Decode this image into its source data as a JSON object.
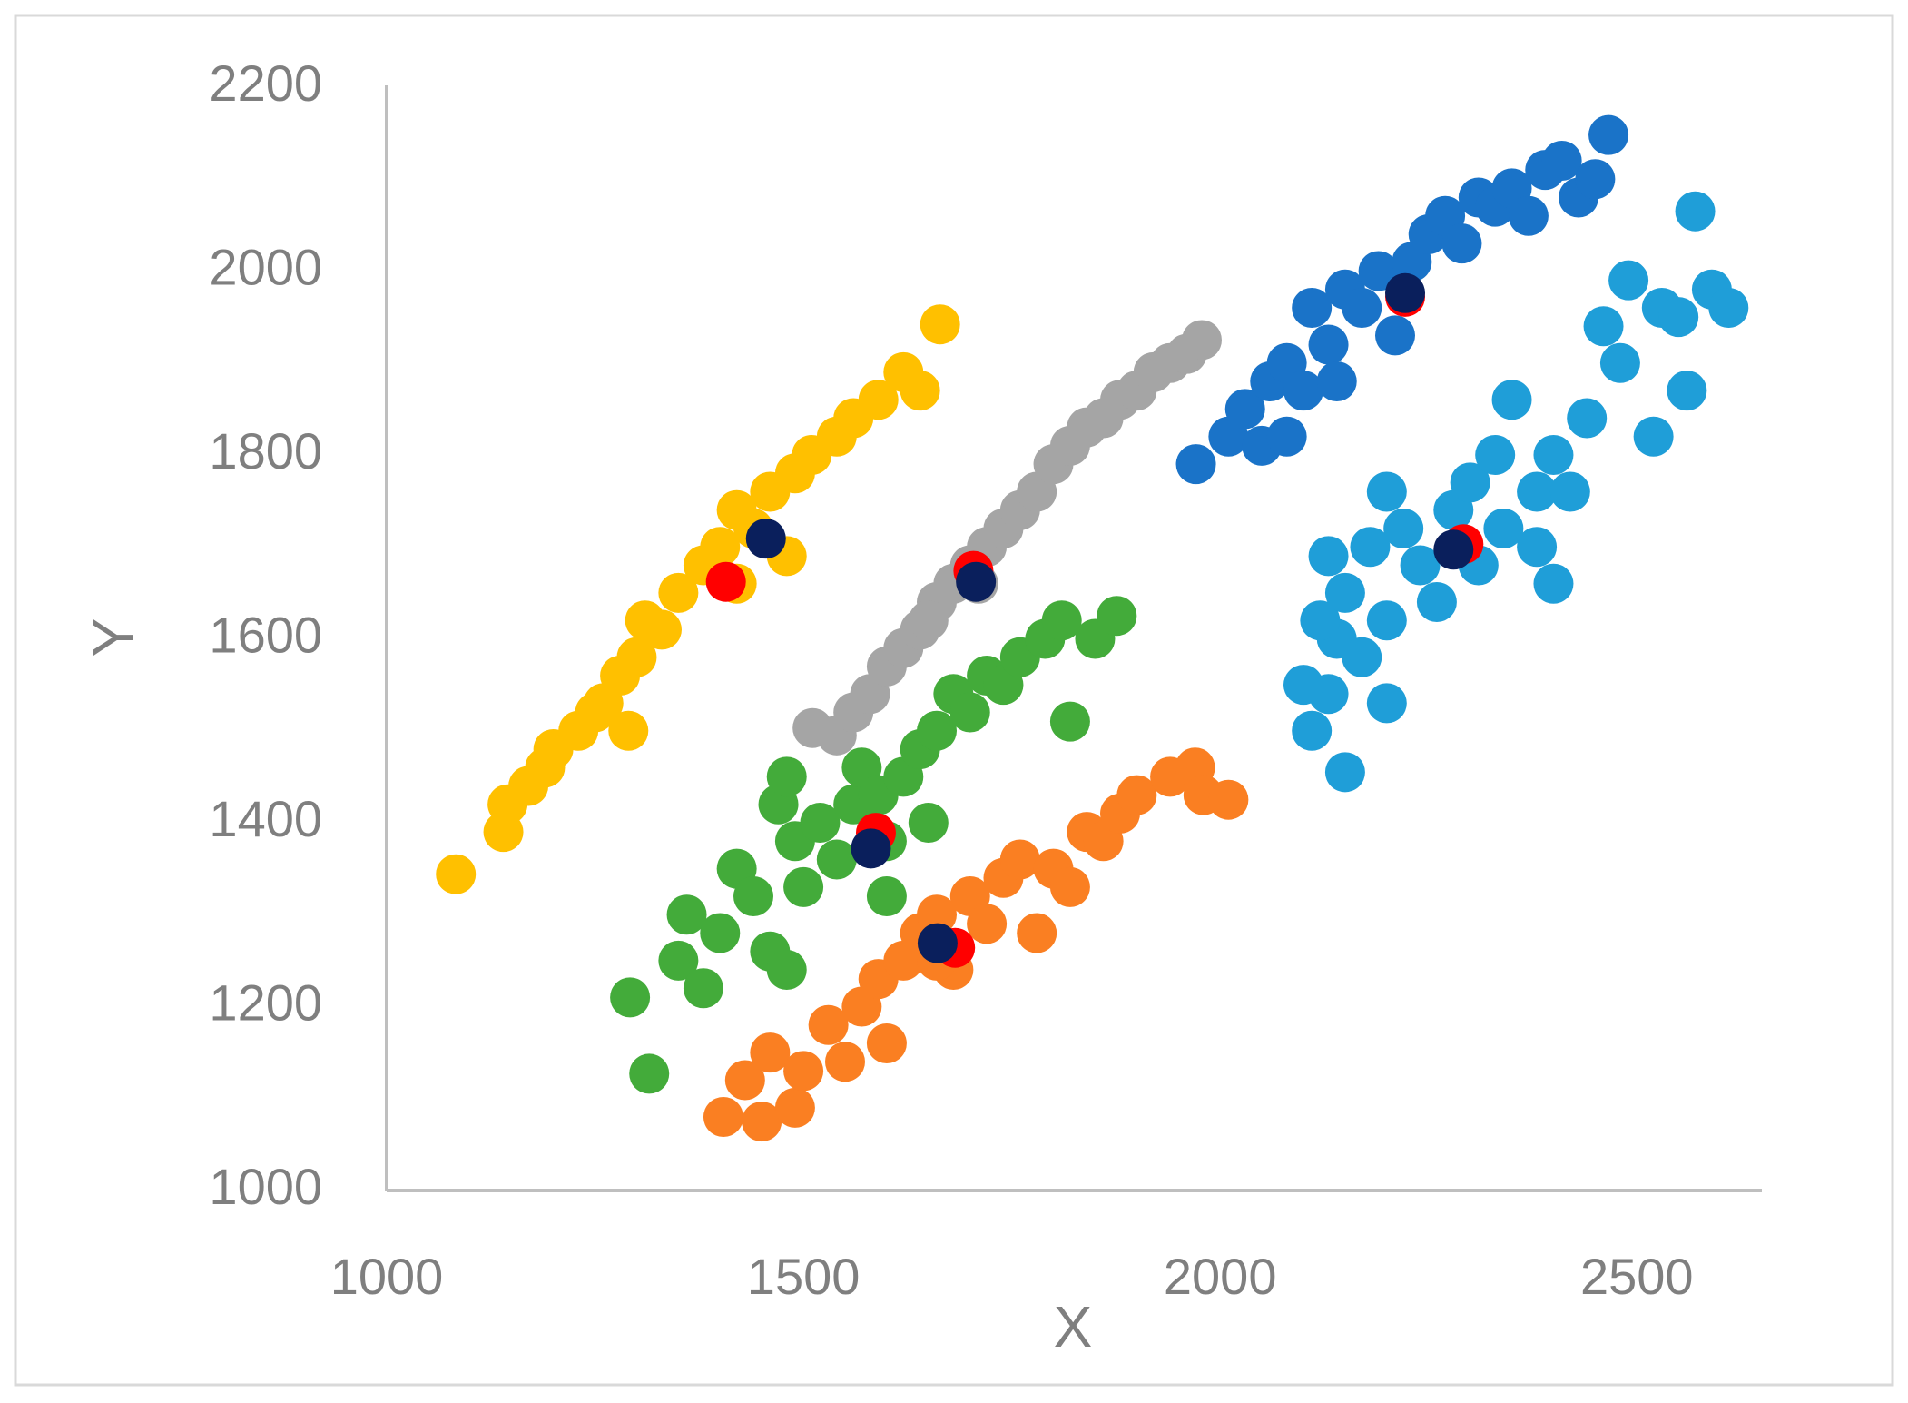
{
  "chart_data": {
    "type": "scatter",
    "x_label": "X",
    "y_label": "Y",
    "xlim": [
      1000,
      2650
    ],
    "ylim": [
      1000,
      2200
    ],
    "xticks": [
      1000,
      1500,
      2000,
      2500
    ],
    "yticks": [
      1000,
      1200,
      1400,
      1600,
      1800,
      2000,
      2200
    ],
    "grid": false,
    "series": [
      {
        "color": "#ffc000",
        "x": [
          1083,
          1140,
          1145,
          1170,
          1190,
          1200,
          1230,
          1260,
          1280,
          1300,
          1310,
          1330,
          1350,
          1380,
          1400,
          1420,
          1440,
          1460,
          1490,
          1510,
          1540,
          1560,
          1590,
          1620,
          1640,
          1664,
          1420,
          1290,
          1250,
          1480
        ],
        "values": [
          1344,
          1390,
          1420,
          1440,
          1460,
          1480,
          1500,
          1530,
          1560,
          1580,
          1620,
          1610,
          1650,
          1680,
          1700,
          1740,
          1720,
          1760,
          1780,
          1800,
          1820,
          1840,
          1860,
          1890,
          1870,
          1942,
          1660,
          1500,
          1520,
          1690
        ]
      },
      {
        "color": "#a5a5a5",
        "x": [
          1511,
          1540,
          1560,
          1580,
          1600,
          1620,
          1640,
          1660,
          1680,
          1700,
          1720,
          1740,
          1760,
          1780,
          1800,
          1820,
          1840,
          1860,
          1880,
          1900,
          1920,
          1940,
          1960,
          1978,
          1650,
          1710
        ],
        "values": [
          1503,
          1495,
          1520,
          1540,
          1570,
          1590,
          1610,
          1640,
          1660,
          1680,
          1700,
          1720,
          1740,
          1760,
          1790,
          1810,
          1830,
          1840,
          1860,
          1870,
          1890,
          1900,
          1910,
          1925,
          1620,
          1660
        ]
      },
      {
        "color": "#43ab3a",
        "x": [
          1292,
          1315,
          1350,
          1360,
          1380,
          1400,
          1420,
          1440,
          1460,
          1470,
          1480,
          1490,
          1500,
          1520,
          1540,
          1560,
          1570,
          1590,
          1600,
          1620,
          1640,
          1660,
          1680,
          1700,
          1720,
          1740,
          1760,
          1790,
          1810,
          1820,
          1850,
          1876,
          1600,
          1650,
          1480
        ],
        "values": [
          1210,
          1127,
          1250,
          1300,
          1220,
          1280,
          1350,
          1320,
          1260,
          1420,
          1450,
          1380,
          1330,
          1400,
          1360,
          1420,
          1460,
          1430,
          1380,
          1450,
          1480,
          1500,
          1540,
          1520,
          1560,
          1550,
          1580,
          1600,
          1620,
          1510,
          1600,
          1625,
          1320,
          1400,
          1240
        ]
      },
      {
        "color": "#fa7f22",
        "x": [
          1404,
          1430,
          1450,
          1460,
          1490,
          1500,
          1530,
          1550,
          1570,
          1590,
          1600,
          1620,
          1640,
          1660,
          1680,
          1700,
          1720,
          1740,
          1760,
          1780,
          1800,
          1820,
          1840,
          1860,
          1880,
          1900,
          1940,
          1970,
          1980,
          2010,
          1660
        ],
        "values": [
          1080,
          1120,
          1075,
          1150,
          1090,
          1130,
          1180,
          1140,
          1200,
          1230,
          1160,
          1250,
          1280,
          1300,
          1240,
          1320,
          1290,
          1340,
          1360,
          1280,
          1350,
          1330,
          1390,
          1380,
          1410,
          1430,
          1450,
          1460,
          1430,
          1425,
          1250
        ]
      },
      {
        "color": "#1a73c8",
        "x": [
          1971,
          2010,
          2030,
          2050,
          2060,
          2080,
          2100,
          2110,
          2130,
          2150,
          2170,
          2190,
          2210,
          2230,
          2250,
          2270,
          2290,
          2310,
          2330,
          2350,
          2370,
          2390,
          2410,
          2430,
          2450,
          2466,
          2140,
          2080
        ],
        "values": [
          1790,
          1820,
          1850,
          1810,
          1880,
          1900,
          1870,
          1960,
          1920,
          1980,
          1960,
          2000,
          1930,
          2010,
          2040,
          2060,
          2030,
          2080,
          2070,
          2090,
          2060,
          2110,
          2120,
          2080,
          2100,
          2148,
          1880,
          1820
        ]
      },
      {
        "color": "#1f9ed8",
        "x": [
          2150,
          2110,
          2130,
          2100,
          2140,
          2120,
          2170,
          2150,
          2130,
          2200,
          2180,
          2200,
          2220,
          2240,
          2260,
          2280,
          2300,
          2310,
          2330,
          2350,
          2340,
          2380,
          2400,
          2420,
          2440,
          2460,
          2480,
          2490,
          2520,
          2530,
          2550,
          2560,
          2570,
          2590,
          2610,
          2400,
          2380,
          2200
        ],
        "values": [
          1455,
          1500,
          1540,
          1550,
          1600,
          1620,
          1580,
          1650,
          1690,
          1620,
          1700,
          1760,
          1720,
          1680,
          1640,
          1740,
          1770,
          1680,
          1800,
          1860,
          1720,
          1760,
          1800,
          1760,
          1840,
          1940,
          1900,
          1990,
          1820,
          1960,
          1950,
          1870,
          2065,
          1980,
          1960,
          1660,
          1700,
          1530
        ]
      },
      {
        "color": "#ff0000",
        "x": [
          1407,
          1587,
          1704,
          1682,
          2222,
          2292
        ],
        "values": [
          1662,
          1389,
          1674,
          1264,
          1972,
          1703
        ]
      },
      {
        "color": "#0a1f5c",
        "x": [
          1455,
          1581,
          1707,
          1661,
          2222,
          2280
        ],
        "values": [
          1709,
          1372,
          1662,
          1269,
          1976,
          1697
        ]
      }
    ]
  }
}
